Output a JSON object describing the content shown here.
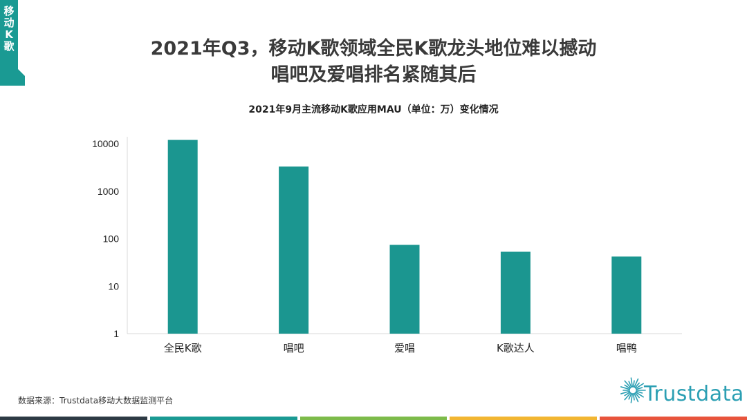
{
  "corner_tag": {
    "chars": [
      "移",
      "动",
      "K",
      "歌"
    ],
    "color": "#1a9a93"
  },
  "title": {
    "line1": "2021年Q3，移动K歌领域全民K歌龙头地位难以撼动",
    "line2": "唱吧及爱唱排名紧随其后"
  },
  "chart_data": {
    "type": "bar",
    "title": "2021年9月主流移动K歌应用MAU（单位：万）变化情况",
    "categories": [
      "全民K歌",
      "唱吧",
      "爱唱",
      "K歌达人",
      "唱鸭"
    ],
    "values": [
      12000,
      3300,
      74,
      53,
      42
    ],
    "y_scale": "log",
    "ylim": [
      1,
      10000
    ],
    "yticks": [
      "1",
      "10",
      "100",
      "1000",
      "10000"
    ],
    "bar_color": "#1b9690",
    "grid": false,
    "legend": "none"
  },
  "source": "数据来源：Trustdata移动大数据监测平台",
  "logo": {
    "text": "Trustdata",
    "color": "#2b9fb3"
  },
  "bottom_bar_colors": [
    "#2d3a44",
    "#1a9a93",
    "#7dbb4a",
    "#f2b632",
    "#e8543c"
  ]
}
